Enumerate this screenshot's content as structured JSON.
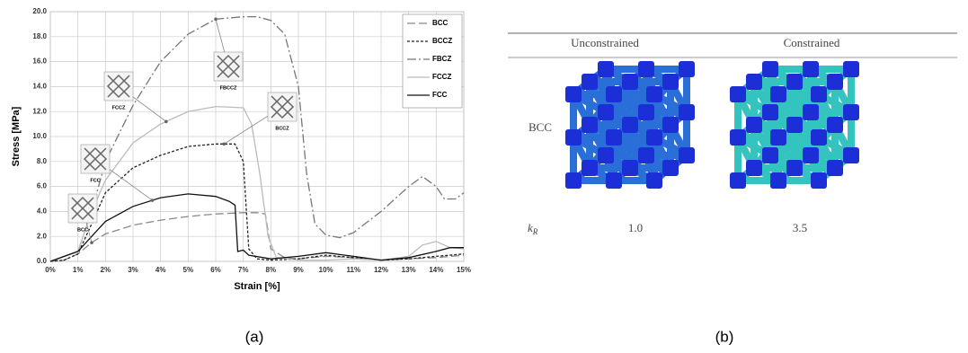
{
  "chart_data": {
    "type": "line",
    "x_label": "Strain [%]",
    "y_label": "Stress [MPa]",
    "xlim": [
      0,
      15
    ],
    "ylim": [
      0,
      20
    ],
    "xticks": [
      {
        "value": 0,
        "label": "0%"
      },
      {
        "value": 1,
        "label": "1%"
      },
      {
        "value": 2,
        "label": "2%"
      },
      {
        "value": 3,
        "label": "3%"
      },
      {
        "value": 4,
        "label": "4%"
      },
      {
        "value": 5,
        "label": "5%"
      },
      {
        "value": 6,
        "label": "6%"
      },
      {
        "value": 7,
        "label": "7%"
      },
      {
        "value": 8,
        "label": "8%"
      },
      {
        "value": 9,
        "label": "9%"
      },
      {
        "value": 10,
        "label": "10%"
      },
      {
        "value": 11,
        "label": "11%"
      },
      {
        "value": 12,
        "label": "12%"
      },
      {
        "value": 13,
        "label": "13%"
      },
      {
        "value": 14,
        "label": "14%"
      },
      {
        "value": 15,
        "label": "15%"
      }
    ],
    "yticks": [
      {
        "value": 0,
        "label": "0.0"
      },
      {
        "value": 2,
        "label": "2.0"
      },
      {
        "value": 4,
        "label": "4.0"
      },
      {
        "value": 6,
        "label": "6.0"
      },
      {
        "value": 8,
        "label": "8.0"
      },
      {
        "value": 10,
        "label": "10.0"
      },
      {
        "value": 12,
        "label": "12.0"
      },
      {
        "value": 14,
        "label": "14.0"
      },
      {
        "value": 16,
        "label": "16.0"
      },
      {
        "value": 18,
        "label": "18.0"
      },
      {
        "value": 20,
        "label": "20.0"
      }
    ],
    "grid": true,
    "legend": "upper right",
    "series": [
      {
        "name": "BCC",
        "color": "#8a8a8a",
        "dash": "9,4",
        "x": [
          0,
          0.5,
          1,
          1.5,
          2,
          3,
          4,
          5,
          6,
          7,
          7.5,
          7.8,
          8,
          8.5,
          9,
          10,
          11,
          12,
          13,
          14,
          15
        ],
        "values": [
          0,
          0.1,
          0.6,
          1.5,
          2.2,
          2.9,
          3.3,
          3.6,
          3.8,
          3.9,
          3.9,
          3.8,
          1,
          0.3,
          0.2,
          0.4,
          0.3,
          0.1,
          0.2,
          0.3,
          0.5
        ]
      },
      {
        "name": "BCCZ",
        "color": "#222222",
        "dash": "3,2",
        "x": [
          0,
          0.5,
          1,
          1.5,
          2,
          3,
          4,
          5,
          6,
          6.7,
          7,
          7.2,
          7.5,
          8,
          9,
          10,
          11,
          12,
          13,
          14,
          15
        ],
        "values": [
          0,
          0.1,
          0.6,
          3,
          5.5,
          7.5,
          8.5,
          9.2,
          9.4,
          9.4,
          8,
          1,
          0.2,
          0.1,
          0.2,
          0.5,
          0.3,
          0.1,
          0.2,
          0.4,
          0.6
        ]
      },
      {
        "name": "FBCZ",
        "color": "#777777",
        "dash": "10,3,2,3",
        "x": [
          0,
          1,
          1.5,
          2,
          3,
          4,
          5,
          6,
          7,
          7.5,
          8,
          8.5,
          9,
          9.3,
          9.6,
          10,
          10.5,
          11,
          12,
          13,
          13.5,
          14,
          14.3,
          14.7,
          15
        ],
        "values": [
          0,
          0.8,
          4,
          8,
          12.5,
          16,
          18.2,
          19.4,
          19.6,
          19.6,
          19.3,
          18.2,
          14,
          7,
          3,
          2.1,
          1.9,
          2.3,
          4,
          6,
          6.8,
          6,
          5,
          5,
          5.5
        ]
      },
      {
        "name": "FCCZ",
        "color": "#bbbbbb",
        "dash": "",
        "x": [
          0,
          1,
          1.5,
          2,
          3,
          4,
          5,
          6,
          7,
          7.3,
          7.6,
          7.9,
          8.2,
          9,
          10,
          11,
          12,
          13,
          13.5,
          14,
          14.5,
          15
        ],
        "values": [
          0,
          0.8,
          4,
          6.5,
          9.5,
          11,
          12,
          12.4,
          12.3,
          11,
          7,
          2,
          0.3,
          0.1,
          0.1,
          0.2,
          0.1,
          0.4,
          1.3,
          1.6,
          1.1,
          1
        ]
      },
      {
        "name": "FCC",
        "color": "#111111",
        "dash": "",
        "x": [
          0,
          1,
          1.5,
          2,
          3,
          4,
          5,
          6,
          6.5,
          6.7,
          6.8,
          7,
          7.2,
          8,
          9,
          10,
          11,
          12,
          13,
          14,
          14.5,
          15
        ],
        "values": [
          0,
          0.8,
          2,
          3.2,
          4.4,
          5.1,
          5.4,
          5.2,
          4.8,
          4.5,
          0.8,
          0.9,
          0.5,
          0.2,
          0.4,
          0.7,
          0.4,
          0.1,
          0.3,
          0.8,
          1.1,
          1.1
        ]
      }
    ],
    "annotations": [
      "FCCZ",
      "FBCCZ",
      "BCCZ",
      "FCC",
      "BCC"
    ]
  },
  "captions": [
    "(a)",
    "(b)"
  ],
  "table": {
    "columns": [
      "Unconstrained",
      "Constrained"
    ],
    "rows": [
      {
        "label": "BCC"
      },
      {
        "label": {
          "symbol": "k",
          "subscript": "R"
        },
        "cells": [
          "1.0",
          "3.5"
        ]
      }
    ]
  }
}
